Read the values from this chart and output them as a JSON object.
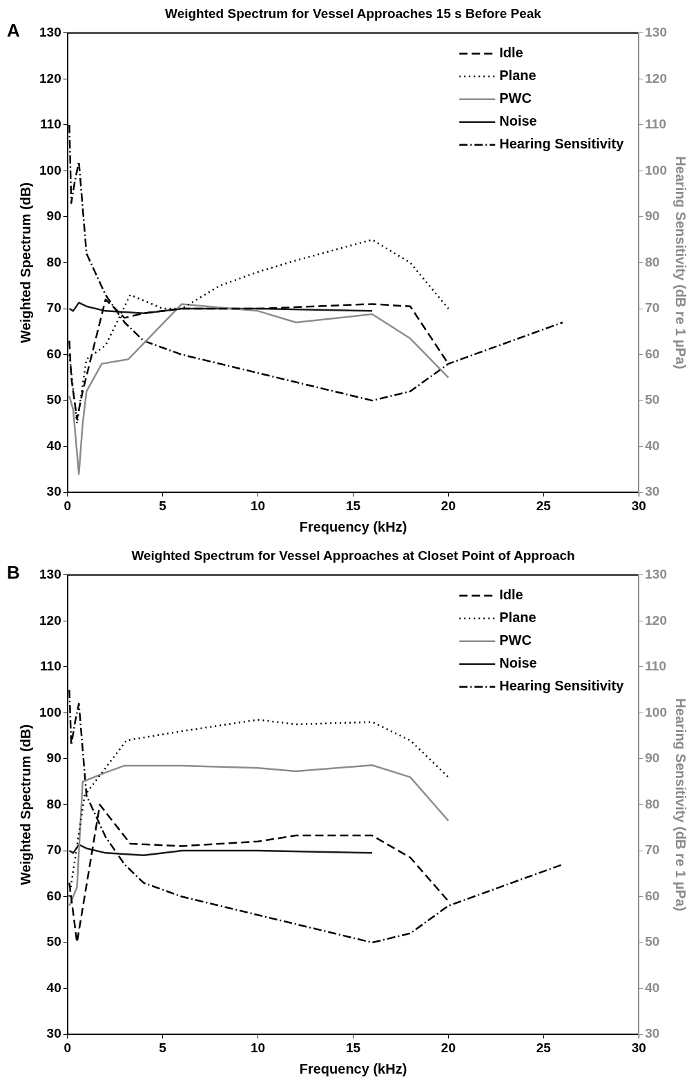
{
  "chart_data": [
    {
      "type": "line",
      "title": "Weighted Spectrum for Vessel Approaches 15 s Before Peak",
      "xlabel": "Frequency (kHz)",
      "ylabel": "Weighted Spectrum (dB)",
      "y2label": "Hearing Sensitivity (dB re 1 µPa)",
      "annotations": [
        "A"
      ],
      "xlim": [
        0,
        30
      ],
      "xticks": [
        0,
        5,
        10,
        15,
        20,
        25,
        30
      ],
      "ylim": [
        30,
        130
      ],
      "yticks": [
        30,
        40,
        50,
        60,
        70,
        80,
        90,
        100,
        110,
        120,
        130
      ],
      "y2lim": [
        30,
        130
      ],
      "y2ticks": [
        30,
        40,
        50,
        60,
        70,
        80,
        90,
        100,
        110,
        120,
        130
      ],
      "grid": false,
      "legend": "top right",
      "series": [
        {
          "name": "Idle",
          "color": "#000000",
          "line_style": "dashed",
          "x": [
            0.1,
            0.2,
            0.5,
            0.8,
            2,
            3,
            4,
            6,
            10,
            16,
            18,
            20
          ],
          "values": [
            63,
            55,
            46,
            52,
            72,
            68,
            69,
            70,
            70,
            71,
            70.5,
            58
          ]
        },
        {
          "name": "Plane",
          "color": "#000000",
          "line_style": "dotted",
          "x": [
            0.1,
            0.5,
            1,
            2,
            3.3,
            5,
            6,
            8,
            10,
            12,
            16,
            18,
            20
          ],
          "values": [
            60,
            45,
            59,
            62,
            73,
            70,
            70,
            75,
            78,
            80.5,
            85,
            80,
            70
          ]
        },
        {
          "name": "PWC",
          "color": "#8c8c8c",
          "line_style": "solid",
          "x": [
            0.1,
            0.3,
            0.6,
            0.8,
            1,
            1.8,
            3.2,
            6,
            10,
            12,
            16,
            18,
            20
          ],
          "values": [
            51,
            48,
            34,
            45,
            52,
            58,
            59,
            71,
            69.5,
            67,
            68.8,
            63.5,
            55
          ]
        },
        {
          "name": "Noise",
          "color": "#1a1a1a",
          "line_style": "solid",
          "x": [
            0.1,
            0.3,
            0.6,
            1,
            2,
            4,
            6,
            10,
            16
          ],
          "values": [
            70,
            69.5,
            71.3,
            70.5,
            69.5,
            69,
            70,
            70,
            69.5
          ]
        },
        {
          "name": "Hearing Sensitivity",
          "color": "#000000",
          "line_style": "dashdot",
          "axis": "y2",
          "x": [
            0.1,
            0.2,
            0.4,
            0.6,
            1,
            2,
            3,
            4,
            6,
            10,
            12,
            16,
            18,
            20,
            26
          ],
          "values": [
            110,
            93,
            98,
            102,
            82,
            73,
            67,
            63,
            60,
            56,
            54,
            50,
            52,
            58,
            67
          ]
        }
      ]
    },
    {
      "type": "line",
      "title": "Weighted Spectrum for Vessel Approaches at Closet Point of Approach",
      "xlabel": "Frequency (kHz)",
      "ylabel": "Weighted Spectrum (dB)",
      "y2label": "Hearing Sensitivity (dB re 1 µPa)",
      "annotations": [
        "B"
      ],
      "xlim": [
        0,
        30
      ],
      "xticks": [
        0,
        5,
        10,
        15,
        20,
        25,
        30
      ],
      "ylim": [
        30,
        130
      ],
      "yticks": [
        30,
        40,
        50,
        60,
        70,
        80,
        90,
        100,
        110,
        120,
        130
      ],
      "y2lim": [
        30,
        130
      ],
      "y2ticks": [
        30,
        40,
        50,
        60,
        70,
        80,
        90,
        100,
        110,
        120,
        130
      ],
      "grid": false,
      "legend": "top right",
      "series": [
        {
          "name": "Idle",
          "color": "#000000",
          "line_style": "dashed",
          "x": [
            0.1,
            0.5,
            1.7,
            3.3,
            6,
            10,
            12,
            16,
            18,
            20
          ],
          "values": [
            63,
            50,
            80,
            71.5,
            71,
            72,
            73.3,
            73.3,
            68.5,
            59
          ]
        },
        {
          "name": "Plane",
          "color": "#000000",
          "line_style": "dotted",
          "x": [
            0.1,
            0.9,
            3.1,
            6,
            10,
            12,
            16,
            18,
            20
          ],
          "values": [
            60,
            82,
            94,
            96,
            98.5,
            97.5,
            98,
            94,
            86
          ]
        },
        {
          "name": "PWC",
          "color": "#8c8c8c",
          "line_style": "solid",
          "x": [
            0.1,
            0.5,
            0.8,
            2,
            3,
            6,
            10,
            12,
            16,
            18,
            20
          ],
          "values": [
            58,
            62,
            85,
            87,
            88.5,
            88.5,
            88,
            87.3,
            88.6,
            86,
            76.5
          ]
        },
        {
          "name": "Noise",
          "color": "#1a1a1a",
          "line_style": "solid",
          "x": [
            0.1,
            0.3,
            0.6,
            1,
            2,
            4,
            6,
            10,
            16
          ],
          "values": [
            70,
            69.5,
            71.3,
            70.5,
            69.5,
            69,
            70,
            70,
            69.5
          ]
        },
        {
          "name": "Hearing Sensitivity",
          "color": "#000000",
          "line_style": "dashdot",
          "axis": "y2",
          "x": [
            0.1,
            0.2,
            0.4,
            0.6,
            1,
            2,
            3,
            4,
            6,
            10,
            12,
            16,
            18,
            20,
            26
          ],
          "values": [
            105,
            93,
            98,
            102,
            82,
            73,
            67,
            63,
            60,
            56,
            54,
            50,
            52,
            58,
            67
          ]
        }
      ]
    }
  ]
}
